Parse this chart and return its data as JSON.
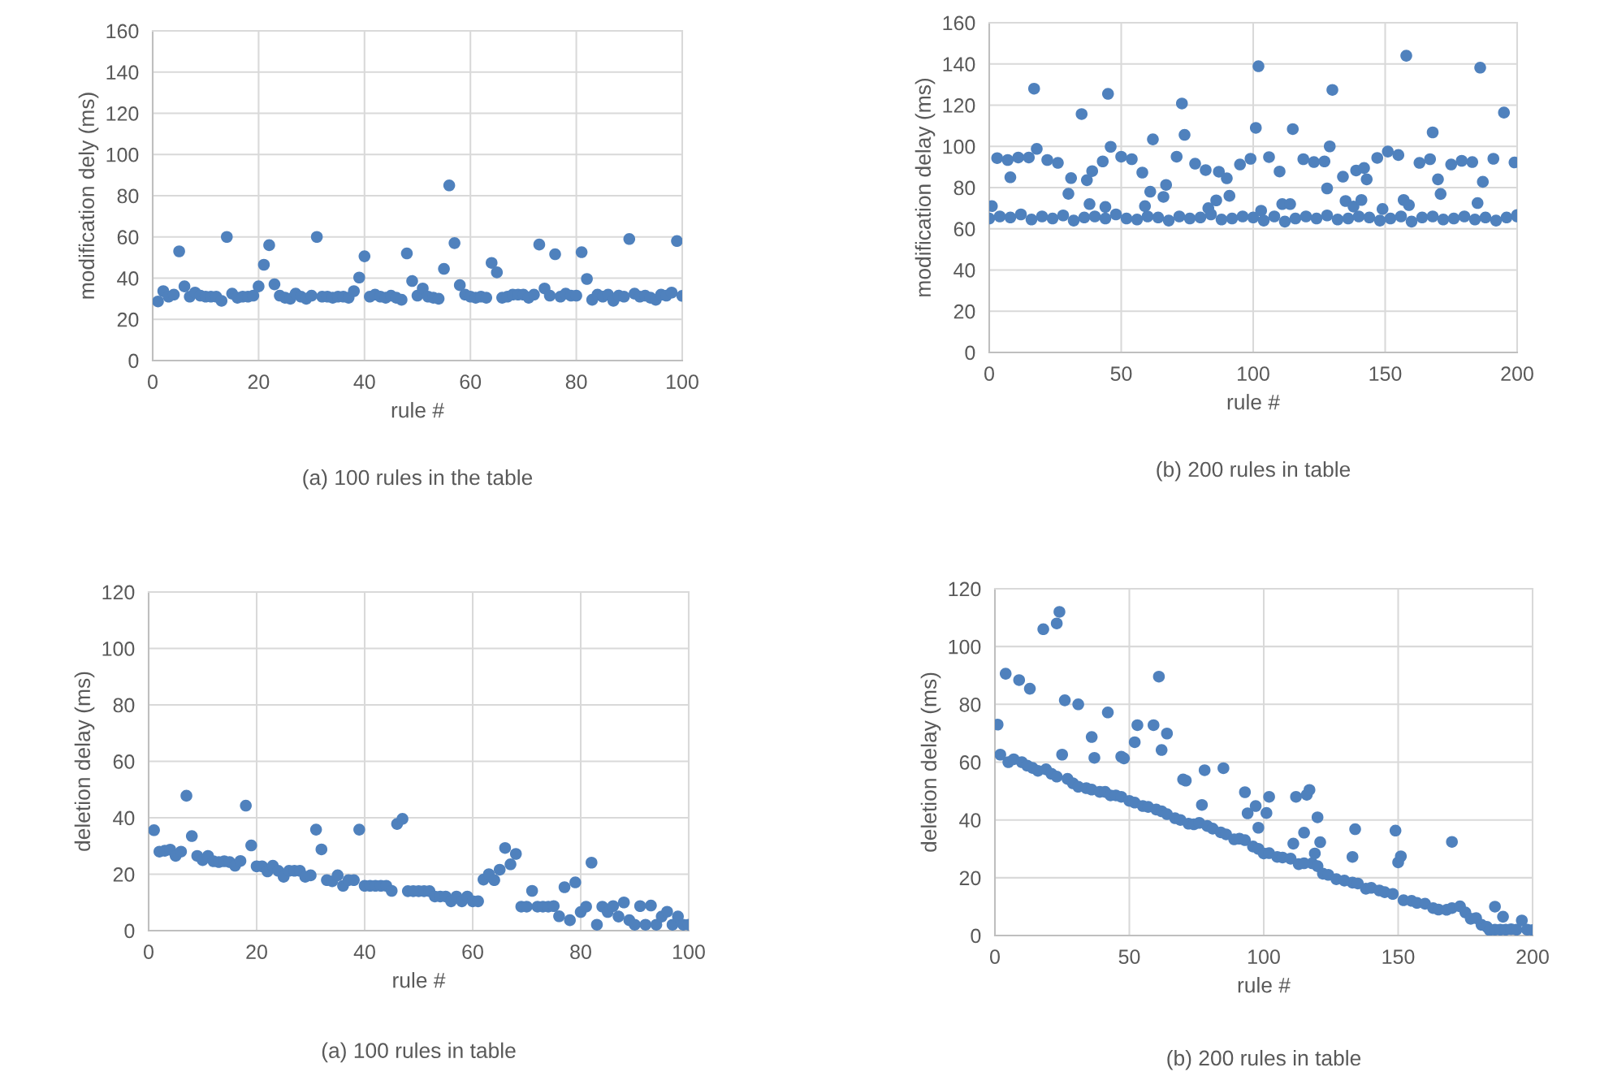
{
  "chart_data": [
    {
      "type": "scatter",
      "xlabel": "rule #",
      "ylabel": "modification dely (ms)",
      "annotations": [
        "(a) 100 rules in the table"
      ],
      "xlim": [
        0,
        100
      ],
      "ylim": [
        0,
        160
      ],
      "xticks": [
        0,
        20,
        40,
        60,
        80,
        100
      ],
      "yticks": [
        0,
        20,
        40,
        60,
        80,
        100,
        120,
        140,
        160
      ],
      "grid": true,
      "marker": "circle",
      "series": [
        {
          "color": "#4f81bd",
          "x": [
            1,
            2,
            3,
            4,
            5,
            6,
            7,
            8,
            9,
            10,
            11,
            12,
            13,
            14,
            15,
            16,
            17,
            18,
            19,
            20,
            21,
            22,
            23,
            24,
            25,
            26,
            27,
            28,
            29,
            30,
            31,
            32,
            33,
            34,
            35,
            36,
            37,
            38,
            39,
            40,
            41,
            42,
            43,
            44,
            45,
            46,
            47,
            48,
            49,
            50,
            51,
            52,
            53,
            54,
            55,
            56,
            57,
            58,
            59,
            60,
            61,
            62,
            63,
            64,
            65,
            66,
            67,
            68,
            69,
            70,
            71,
            72,
            73,
            74,
            75,
            76,
            77,
            78,
            79,
            80,
            81,
            82,
            83,
            84,
            85,
            86,
            87,
            88,
            89,
            90,
            91,
            92,
            93,
            94,
            95,
            96,
            97,
            98,
            99,
            100
          ],
          "values": [
            28.7,
            33.7,
            31,
            32,
            53,
            36,
            31,
            33,
            31.5,
            31,
            31,
            31,
            29,
            60,
            32.5,
            30.5,
            31,
            31,
            31.5,
            36,
            46.5,
            56,
            37,
            31.5,
            30.5,
            30,
            32.5,
            31,
            30,
            31.5,
            60,
            31,
            31,
            30.5,
            31,
            31,
            30.5,
            33.7,
            40.3,
            50.6,
            31,
            32,
            31,
            30.5,
            31.5,
            30.5,
            29.5,
            52,
            38.6,
            31.5,
            35,
            31,
            30.5,
            30,
            44.5,
            85,
            57,
            36.6,
            32,
            31,
            30.5,
            31,
            30.5,
            47.4,
            42.8,
            30.5,
            31,
            32,
            32,
            32,
            30.5,
            32,
            56.3,
            35,
            31.5,
            51.6,
            31,
            32.5,
            31.5,
            31.5,
            52.6,
            39.6,
            29.5,
            32,
            31,
            32,
            29,
            31.5,
            31,
            59,
            32.5,
            31,
            31.5,
            30.5,
            29.5,
            32,
            31.5,
            33,
            58,
            31.4
          ]
        }
      ]
    },
    {
      "type": "scatter",
      "xlabel": "rule #",
      "ylabel": "modification delay (ms)",
      "annotations": [
        "(b) 200 rules in table"
      ],
      "xlim": [
        0,
        200
      ],
      "ylim": [
        0,
        160
      ],
      "xticks": [
        0,
        50,
        100,
        150,
        200
      ],
      "yticks": [
        0,
        20,
        40,
        60,
        80,
        100,
        120,
        140,
        160
      ],
      "grid": true,
      "marker": "circle",
      "series": [
        {
          "color": "#4f81bd",
          "x": [
            0,
            4,
            8,
            12,
            16,
            20,
            24,
            28,
            32,
            36,
            40,
            44,
            48,
            52,
            56,
            60,
            64,
            68,
            72,
            76,
            80,
            84,
            88,
            92,
            96,
            100,
            104,
            108,
            112,
            116,
            120,
            124,
            128,
            132,
            136,
            140,
            144,
            148,
            152,
            156,
            160,
            164,
            168,
            172,
            176,
            180,
            184,
            188,
            192,
            196,
            200,
            1,
            3,
            7,
            8,
            11,
            15,
            17,
            18,
            22,
            26,
            30,
            31,
            35,
            37,
            38,
            39,
            43,
            44,
            45,
            46,
            50,
            54,
            58,
            59,
            61,
            62,
            66,
            67,
            71,
            73,
            74,
            78,
            82,
            83,
            86,
            87,
            90,
            91,
            95,
            99,
            101,
            102,
            103,
            106,
            110,
            111,
            114,
            115,
            119,
            123,
            127,
            128,
            129,
            130,
            134,
            135,
            138,
            139,
            141,
            142,
            143,
            147,
            149,
            151,
            155,
            157,
            158,
            159,
            163,
            167,
            168,
            170,
            171,
            175,
            179,
            183,
            185,
            186,
            187,
            191,
            195,
            199,
            200
          ],
          "values": [
            65,
            66,
            65.5,
            67,
            64.5,
            66,
            65,
            66.5,
            64,
            65.5,
            66,
            65,
            67,
            65,
            64.5,
            66,
            65.5,
            64,
            66,
            65,
            65.5,
            67,
            64.5,
            65,
            66,
            65.5,
            64,
            66,
            63.5,
            65,
            66,
            65,
            66.5,
            64.5,
            65,
            66,
            65.5,
            64,
            65,
            66,
            63.5,
            65.5,
            66,
            64.5,
            65,
            66,
            64.5,
            65.5,
            64,
            65.5,
            66,
            71,
            94.3,
            93.4,
            85,
            94.6,
            94.6,
            128,
            98.8,
            93.4,
            92,
            77,
            84.6,
            115.7,
            83.6,
            72,
            88,
            92.7,
            70.6,
            125.5,
            99.8,
            95,
            93.8,
            87.3,
            71,
            78,
            103.4,
            75.5,
            81.3,
            95,
            120.8,
            105.6,
            91.6,
            88.5,
            70,
            73.8,
            87.7,
            84.5,
            76,
            91.2,
            94,
            109,
            138.9,
            68.8,
            94.8,
            87.8,
            72,
            72,
            108.4,
            93.8,
            92.4,
            92.7,
            79.6,
            100,
            127.4,
            85.3,
            73.5,
            70.8,
            88.3,
            74,
            89.5,
            84,
            94.4,
            69.6,
            97.5,
            95.8,
            74,
            144,
            71.5,
            92,
            93.8,
            106.8,
            84,
            76.9,
            91.2,
            93,
            92.4,
            72.5,
            138.2,
            82.8,
            94,
            116.4,
            92.2,
            66.7
          ]
        }
      ]
    },
    {
      "type": "scatter",
      "xlabel": "rule #",
      "ylabel": "deletion delay (ms)",
      "annotations": [
        "(a) 100 rules in table"
      ],
      "xlim": [
        0,
        100
      ],
      "ylim": [
        0,
        120
      ],
      "xticks": [
        0,
        20,
        40,
        60,
        80,
        100
      ],
      "yticks": [
        0,
        20,
        40,
        60,
        80,
        100,
        120
      ],
      "grid": true,
      "marker": "circle",
      "series": [
        {
          "color": "#4f81bd",
          "x": [
            1,
            2,
            3,
            4,
            5,
            6,
            7,
            8,
            9,
            10,
            11,
            12,
            13,
            14,
            15,
            16,
            17,
            18,
            19,
            20,
            21,
            22,
            23,
            24,
            25,
            26,
            27,
            28,
            29,
            30,
            31,
            32,
            33,
            34,
            35,
            36,
            37,
            38,
            39,
            40,
            41,
            42,
            43,
            44,
            45,
            46,
            47,
            48,
            49,
            50,
            51,
            52,
            53,
            54,
            55,
            56,
            57,
            58,
            59,
            60,
            61,
            62,
            63,
            64,
            65,
            66,
            67,
            68,
            69,
            70,
            71,
            72,
            73,
            74,
            75,
            76,
            77,
            78,
            79,
            80,
            81,
            82,
            83,
            84,
            85,
            86,
            87,
            88,
            89,
            90,
            91,
            92,
            93,
            94,
            95,
            96,
            97,
            98,
            99,
            100
          ],
          "values": [
            35.6,
            28,
            28.3,
            28.7,
            26.5,
            28,
            47.8,
            33.5,
            26.5,
            25,
            26.5,
            24.6,
            24.3,
            24.6,
            24.3,
            23,
            24.7,
            44.3,
            30.2,
            22.8,
            22.8,
            21,
            23,
            21.2,
            19.1,
            21.2,
            21.2,
            21.2,
            19.1,
            19.6,
            35.8,
            28.8,
            17.9,
            17.5,
            19.6,
            15.9,
            17.9,
            17.9,
            35.8,
            15.9,
            15.9,
            15.9,
            15.9,
            15.9,
            14.1,
            37.8,
            39.6,
            14,
            14,
            14,
            14,
            14,
            12.1,
            12.1,
            12.1,
            10.4,
            12.1,
            10.4,
            12.1,
            10.4,
            10.4,
            18.1,
            20,
            17.9,
            21.6,
            29.3,
            23.5,
            27.2,
            8.5,
            8.5,
            14.1,
            8.5,
            8.5,
            8.5,
            8.7,
            5.1,
            15.4,
            3.7,
            17.1,
            6.6,
            8.5,
            24.1,
            2.1,
            8.5,
            6.6,
            8.7,
            5,
            10,
            3.7,
            2.1,
            8.7,
            2.1,
            8.9,
            2.1,
            5,
            6.7,
            2.1,
            5,
            2.1,
            2.1
          ]
        }
      ]
    },
    {
      "type": "scatter",
      "xlabel": "rule #",
      "ylabel": "deletion delay (ms)",
      "annotations": [
        "(b) 200 rules in table"
      ],
      "xlim": [
        0,
        200
      ],
      "ylim": [
        0,
        120
      ],
      "xticks": [
        0,
        50,
        100,
        150,
        200
      ],
      "yticks": [
        0,
        20,
        40,
        60,
        80,
        100,
        120
      ],
      "grid": true,
      "marker": "circle",
      "series": [
        {
          "color": "#4f81bd",
          "x": [
            1,
            4,
            9,
            13,
            18,
            23,
            24,
            25,
            26,
            31,
            36,
            37,
            42,
            47,
            48,
            52,
            53,
            59,
            61,
            62,
            64,
            70,
            71,
            77,
            78,
            85,
            93,
            94,
            97,
            98,
            101,
            102,
            111,
            112,
            115,
            116,
            117,
            118,
            119,
            120,
            121,
            133,
            134,
            149,
            150,
            151,
            170,
            186,
            2,
            5,
            7,
            10,
            12,
            14,
            16,
            19,
            21,
            23,
            27,
            29,
            31,
            34,
            36,
            39,
            41,
            43,
            45,
            47,
            50,
            52,
            55,
            57,
            60,
            62,
            64,
            67,
            69,
            72,
            74,
            76,
            79,
            81,
            84,
            86,
            89,
            91,
            93,
            96,
            98,
            100,
            102,
            105,
            107,
            110,
            113,
            115,
            120,
            122,
            124,
            127,
            130,
            133,
            135,
            138,
            140,
            143,
            145,
            148,
            152,
            155,
            157,
            160,
            163,
            165,
            168,
            170,
            173,
            175,
            177,
            179,
            181,
            183,
            184,
            186,
            188,
            189,
            190,
            192,
            194,
            196,
            198,
            200
          ],
          "values": [
            73,
            90.6,
            88.4,
            85.4,
            106,
            108,
            112,
            62.6,
            81.4,
            80,
            68.7,
            61.5,
            77.2,
            61.9,
            61.3,
            66.9,
            72.8,
            72.8,
            89.6,
            64.2,
            69.9,
            54,
            53.6,
            45.2,
            57.2,
            57.9,
            49.6,
            42.3,
            44.8,
            37.3,
            42.4,
            48,
            31.8,
            48,
            35.6,
            48.7,
            50.4,
            25,
            28.4,
            40.9,
            32.3,
            27.2,
            36.8,
            36.3,
            25.3,
            27.4,
            32.4,
            10,
            62.6,
            60,
            61,
            60,
            58.8,
            58,
            57,
            57.5,
            56,
            55,
            54.2,
            52.7,
            51.5,
            51,
            50.5,
            49.7,
            49.7,
            48.5,
            48.5,
            48,
            46.6,
            46,
            44.8,
            44.5,
            43.6,
            43,
            42,
            40.6,
            40,
            38.7,
            38.5,
            39,
            37.9,
            37,
            35.7,
            35,
            33.3,
            33.5,
            33,
            30.8,
            30,
            28.4,
            28.5,
            27.2,
            27,
            26.6,
            24.7,
            25,
            24,
            21.4,
            21,
            19.5,
            19,
            18.3,
            18,
            16.2,
            16.5,
            15.6,
            15,
            14.4,
            12.2,
            12,
            11.3,
            11,
            9.5,
            9,
            8.9,
            9.5,
            10.1,
            8,
            5.8,
            6,
            3.7,
            3,
            1.9,
            2,
            2,
            6.5,
            2,
            2.2,
            2,
            5.2,
            2,
            1.9
          ]
        }
      ]
    }
  ]
}
